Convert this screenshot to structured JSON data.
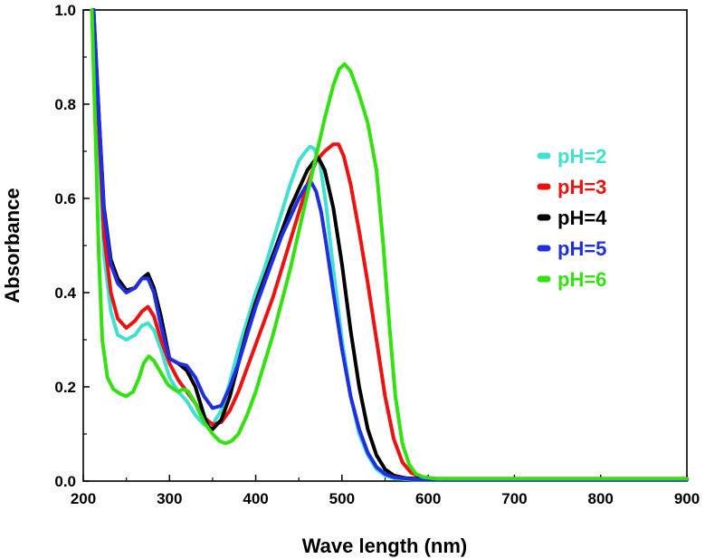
{
  "chart_data": {
    "type": "line",
    "title": "",
    "xlabel": "Wave length (nm)",
    "ylabel": "Absorbance",
    "xlim": [
      200,
      900
    ],
    "ylim": [
      0.0,
      1.0
    ],
    "xticks": [
      "200",
      "300",
      "400",
      "500",
      "600",
      "700",
      "800",
      "900"
    ],
    "yticks": [
      "0.0",
      "0.2",
      "0.4",
      "0.6",
      "0.8",
      "1.0"
    ],
    "grid": false,
    "legend_position": "right",
    "series": [
      {
        "name": "pH=2",
        "color": "#40e0d0",
        "points": [
          [
            212,
            1.0
          ],
          [
            218,
            0.72
          ],
          [
            224,
            0.48
          ],
          [
            232,
            0.36
          ],
          [
            240,
            0.31
          ],
          [
            250,
            0.3
          ],
          [
            260,
            0.31
          ],
          [
            268,
            0.33
          ],
          [
            275,
            0.335
          ],
          [
            282,
            0.32
          ],
          [
            290,
            0.28
          ],
          [
            300,
            0.22
          ],
          [
            310,
            0.19
          ],
          [
            320,
            0.17
          ],
          [
            330,
            0.14
          ],
          [
            340,
            0.12
          ],
          [
            350,
            0.12
          ],
          [
            360,
            0.15
          ],
          [
            370,
            0.21
          ],
          [
            380,
            0.28
          ],
          [
            390,
            0.34
          ],
          [
            400,
            0.4
          ],
          [
            410,
            0.45
          ],
          [
            420,
            0.51
          ],
          [
            430,
            0.57
          ],
          [
            440,
            0.63
          ],
          [
            450,
            0.68
          ],
          [
            458,
            0.7
          ],
          [
            463,
            0.71
          ],
          [
            468,
            0.705
          ],
          [
            475,
            0.67
          ],
          [
            482,
            0.58
          ],
          [
            490,
            0.45
          ],
          [
            500,
            0.3
          ],
          [
            510,
            0.18
          ],
          [
            520,
            0.1
          ],
          [
            530,
            0.055
          ],
          [
            540,
            0.025
          ],
          [
            550,
            0.012
          ],
          [
            560,
            0.006
          ],
          [
            580,
            0.003
          ],
          [
            620,
            0.003
          ],
          [
            700,
            0.003
          ],
          [
            800,
            0.003
          ],
          [
            900,
            0.003
          ]
        ]
      },
      {
        "name": "pH=3",
        "color": "#ee1111",
        "points": [
          [
            212,
            1.0
          ],
          [
            218,
            0.75
          ],
          [
            224,
            0.52
          ],
          [
            232,
            0.4
          ],
          [
            240,
            0.345
          ],
          [
            250,
            0.325
          ],
          [
            260,
            0.34
          ],
          [
            268,
            0.36
          ],
          [
            275,
            0.37
          ],
          [
            282,
            0.35
          ],
          [
            290,
            0.3
          ],
          [
            300,
            0.25
          ],
          [
            310,
            0.215
          ],
          [
            320,
            0.19
          ],
          [
            330,
            0.165
          ],
          [
            340,
            0.135
          ],
          [
            350,
            0.12
          ],
          [
            360,
            0.125
          ],
          [
            370,
            0.15
          ],
          [
            380,
            0.19
          ],
          [
            390,
            0.24
          ],
          [
            400,
            0.29
          ],
          [
            410,
            0.34
          ],
          [
            420,
            0.39
          ],
          [
            430,
            0.45
          ],
          [
            440,
            0.51
          ],
          [
            450,
            0.57
          ],
          [
            460,
            0.63
          ],
          [
            470,
            0.68
          ],
          [
            480,
            0.7
          ],
          [
            490,
            0.715
          ],
          [
            496,
            0.715
          ],
          [
            502,
            0.69
          ],
          [
            510,
            0.63
          ],
          [
            520,
            0.53
          ],
          [
            530,
            0.42
          ],
          [
            540,
            0.3
          ],
          [
            550,
            0.18
          ],
          [
            560,
            0.09
          ],
          [
            570,
            0.04
          ],
          [
            580,
            0.018
          ],
          [
            590,
            0.009
          ],
          [
            610,
            0.005
          ],
          [
            700,
            0.005
          ],
          [
            800,
            0.005
          ],
          [
            900,
            0.005
          ]
        ]
      },
      {
        "name": "pH=4",
        "color": "#000000",
        "points": [
          [
            212,
            1.0
          ],
          [
            218,
            0.78
          ],
          [
            224,
            0.58
          ],
          [
            232,
            0.47
          ],
          [
            240,
            0.43
          ],
          [
            250,
            0.405
          ],
          [
            260,
            0.41
          ],
          [
            268,
            0.43
          ],
          [
            275,
            0.44
          ],
          [
            282,
            0.41
          ],
          [
            290,
            0.35
          ],
          [
            300,
            0.26
          ],
          [
            310,
            0.25
          ],
          [
            320,
            0.235
          ],
          [
            330,
            0.2
          ],
          [
            340,
            0.14
          ],
          [
            345,
            0.115
          ],
          [
            350,
            0.11
          ],
          [
            360,
            0.13
          ],
          [
            370,
            0.18
          ],
          [
            380,
            0.25
          ],
          [
            390,
            0.32
          ],
          [
            400,
            0.38
          ],
          [
            410,
            0.43
          ],
          [
            420,
            0.48
          ],
          [
            430,
            0.53
          ],
          [
            440,
            0.58
          ],
          [
            450,
            0.62
          ],
          [
            460,
            0.66
          ],
          [
            468,
            0.68
          ],
          [
            473,
            0.685
          ],
          [
            480,
            0.66
          ],
          [
            490,
            0.58
          ],
          [
            500,
            0.46
          ],
          [
            510,
            0.32
          ],
          [
            520,
            0.2
          ],
          [
            530,
            0.11
          ],
          [
            540,
            0.055
          ],
          [
            550,
            0.025
          ],
          [
            560,
            0.012
          ],
          [
            575,
            0.006
          ],
          [
            600,
            0.004
          ],
          [
            700,
            0.004
          ],
          [
            800,
            0.004
          ],
          [
            900,
            0.004
          ]
        ]
      },
      {
        "name": "pH=5",
        "color": "#1f2fe0",
        "points": [
          [
            212,
            1.0
          ],
          [
            218,
            0.78
          ],
          [
            224,
            0.57
          ],
          [
            232,
            0.46
          ],
          [
            240,
            0.42
          ],
          [
            250,
            0.4
          ],
          [
            260,
            0.41
          ],
          [
            268,
            0.43
          ],
          [
            275,
            0.43
          ],
          [
            282,
            0.4
          ],
          [
            290,
            0.33
          ],
          [
            300,
            0.26
          ],
          [
            310,
            0.25
          ],
          [
            320,
            0.245
          ],
          [
            330,
            0.22
          ],
          [
            340,
            0.18
          ],
          [
            350,
            0.155
          ],
          [
            360,
            0.16
          ],
          [
            370,
            0.2
          ],
          [
            380,
            0.25
          ],
          [
            390,
            0.31
          ],
          [
            400,
            0.37
          ],
          [
            410,
            0.42
          ],
          [
            420,
            0.47
          ],
          [
            430,
            0.52
          ],
          [
            440,
            0.56
          ],
          [
            450,
            0.6
          ],
          [
            458,
            0.625
          ],
          [
            464,
            0.635
          ],
          [
            470,
            0.615
          ],
          [
            476,
            0.57
          ],
          [
            482,
            0.5
          ],
          [
            490,
            0.4
          ],
          [
            500,
            0.28
          ],
          [
            510,
            0.18
          ],
          [
            520,
            0.11
          ],
          [
            530,
            0.06
          ],
          [
            540,
            0.03
          ],
          [
            550,
            0.015
          ],
          [
            560,
            0.008
          ],
          [
            580,
            0.004
          ],
          [
            620,
            0.003
          ],
          [
            700,
            0.003
          ],
          [
            800,
            0.003
          ],
          [
            900,
            0.003
          ]
        ]
      },
      {
        "name": "pH=6",
        "color": "#33e010",
        "points": [
          [
            210,
            1.0
          ],
          [
            214,
            0.75
          ],
          [
            218,
            0.48
          ],
          [
            222,
            0.3
          ],
          [
            228,
            0.22
          ],
          [
            235,
            0.195
          ],
          [
            243,
            0.185
          ],
          [
            250,
            0.18
          ],
          [
            258,
            0.19
          ],
          [
            265,
            0.22
          ],
          [
            270,
            0.25
          ],
          [
            276,
            0.265
          ],
          [
            282,
            0.255
          ],
          [
            290,
            0.23
          ],
          [
            298,
            0.205
          ],
          [
            305,
            0.195
          ],
          [
            310,
            0.19
          ],
          [
            316,
            0.195
          ],
          [
            322,
            0.19
          ],
          [
            330,
            0.165
          ],
          [
            340,
            0.125
          ],
          [
            350,
            0.1
          ],
          [
            358,
            0.085
          ],
          [
            365,
            0.08
          ],
          [
            372,
            0.085
          ],
          [
            380,
            0.1
          ],
          [
            390,
            0.14
          ],
          [
            400,
            0.19
          ],
          [
            410,
            0.25
          ],
          [
            420,
            0.31
          ],
          [
            430,
            0.38
          ],
          [
            440,
            0.45
          ],
          [
            450,
            0.53
          ],
          [
            460,
            0.61
          ],
          [
            470,
            0.69
          ],
          [
            480,
            0.77
          ],
          [
            490,
            0.84
          ],
          [
            497,
            0.875
          ],
          [
            503,
            0.885
          ],
          [
            510,
            0.87
          ],
          [
            520,
            0.82
          ],
          [
            530,
            0.76
          ],
          [
            540,
            0.66
          ],
          [
            548,
            0.5
          ],
          [
            555,
            0.33
          ],
          [
            562,
            0.18
          ],
          [
            570,
            0.08
          ],
          [
            578,
            0.035
          ],
          [
            586,
            0.015
          ],
          [
            595,
            0.008
          ],
          [
            610,
            0.005
          ],
          [
            700,
            0.005
          ],
          [
            800,
            0.005
          ],
          [
            900,
            0.005
          ]
        ]
      }
    ]
  }
}
